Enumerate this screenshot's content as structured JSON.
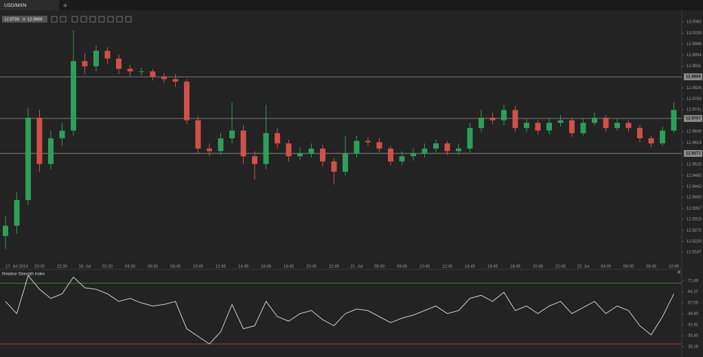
{
  "chart_data": [
    {
      "type": "candlestick",
      "title": "USD/MXN",
      "quote_labels": [
        "12.9739",
        "12.9808"
      ],
      "up_color": "#2e9e5b",
      "down_color": "#d0504a",
      "categories": [
        "17. Jul 2014",
        null,
        null,
        "20:30",
        null,
        "22:30",
        null,
        "18. Jul",
        null,
        "02:30",
        null,
        "04:30",
        null,
        "06:30",
        null,
        "08:45",
        null,
        "10:45",
        null,
        "12:45",
        null,
        "14:45",
        null,
        "16:45",
        null,
        "18:45",
        null,
        "20:45",
        null,
        "22:45",
        null,
        "21. Jul",
        null,
        "06:30",
        null,
        "08:45",
        null,
        "10:45",
        null,
        "12:45",
        null,
        "14:45",
        null,
        "16:45",
        null,
        "18:45",
        null,
        "20:45",
        null,
        "22:45",
        null,
        "22. Jul",
        null,
        "04:00",
        null,
        "06:00",
        null,
        "08:45",
        null,
        "10:45"
      ],
      "open": [
        12.925,
        12.929,
        12.939,
        12.971,
        12.953,
        12.963,
        12.966,
        12.993,
        12.991,
        12.997,
        12.994,
        12.99,
        12.989,
        12.989,
        12.987,
        12.986,
        12.985,
        12.97,
        12.959,
        12.958,
        12.963,
        12.966,
        12.956,
        12.953,
        12.965,
        12.961,
        12.956,
        12.957,
        12.959,
        12.954,
        12.95,
        12.957,
        12.962,
        12.9615,
        12.959,
        12.954,
        12.956,
        12.957,
        12.959,
        12.961,
        12.958,
        12.959,
        12.967,
        12.971,
        12.97,
        12.974,
        12.967,
        12.969,
        12.966,
        12.969,
        12.97,
        12.965,
        12.969,
        12.971,
        12.967,
        12.969,
        12.967,
        12.963,
        12.961,
        12.966
      ],
      "high": [
        12.933,
        12.942,
        12.975,
        12.974,
        12.966,
        12.969,
        13.005,
        12.996,
        12.999,
        12.9985,
        12.9955,
        12.9915,
        12.9905,
        12.99,
        12.9885,
        12.988,
        12.986,
        12.9715,
        12.961,
        12.965,
        12.977,
        12.968,
        12.958,
        12.976,
        12.967,
        12.9625,
        12.9595,
        12.961,
        12.9605,
        12.9555,
        12.964,
        12.964,
        12.9635,
        12.963,
        12.96,
        12.958,
        12.959,
        12.961,
        12.9625,
        12.962,
        12.961,
        12.969,
        12.974,
        12.973,
        12.976,
        12.9755,
        12.9705,
        12.97,
        12.971,
        12.972,
        12.971,
        12.9705,
        12.973,
        12.972,
        12.9705,
        12.97,
        12.968,
        12.964,
        12.9675,
        12.977
      ],
      "low": [
        12.92,
        12.926,
        12.937,
        12.95,
        12.951,
        12.96,
        12.964,
        12.988,
        12.989,
        12.992,
        12.988,
        12.987,
        12.9875,
        12.9855,
        12.9845,
        12.983,
        12.9685,
        12.957,
        12.956,
        12.9565,
        12.961,
        12.953,
        12.947,
        12.951,
        12.959,
        12.954,
        12.9545,
        12.9555,
        12.952,
        12.945,
        12.9485,
        12.9555,
        12.96,
        12.9575,
        12.9525,
        12.9525,
        12.9545,
        12.9555,
        12.9575,
        12.9565,
        12.9565,
        12.9575,
        12.9655,
        12.9685,
        12.968,
        12.9655,
        12.9655,
        12.9645,
        12.9645,
        12.9675,
        12.9635,
        12.964,
        12.968,
        12.9655,
        12.966,
        12.9655,
        12.9615,
        12.9595,
        12.96,
        12.965
      ],
      "close": [
        12.929,
        12.939,
        12.971,
        12.953,
        12.963,
        12.966,
        12.993,
        12.991,
        12.997,
        12.994,
        12.99,
        12.989,
        12.989,
        12.987,
        12.986,
        12.985,
        12.97,
        12.959,
        12.958,
        12.963,
        12.966,
        12.956,
        12.953,
        12.965,
        12.961,
        12.956,
        12.957,
        12.959,
        12.954,
        12.95,
        12.957,
        12.962,
        12.9615,
        12.959,
        12.954,
        12.956,
        12.957,
        12.959,
        12.961,
        12.958,
        12.959,
        12.967,
        12.971,
        12.97,
        12.974,
        12.967,
        12.969,
        12.966,
        12.969,
        12.97,
        12.965,
        12.969,
        12.971,
        12.967,
        12.969,
        12.967,
        12.963,
        12.961,
        12.966,
        12.974
      ],
      "ylim": [
        12.9142,
        13.0109
      ],
      "yticks": [
        12.9187,
        12.9229,
        12.9272,
        12.9315,
        12.9357,
        {
          "value": 12.94,
          "label": "12.9400"
        },
        12.9442,
        12.9485,
        12.9528,
        12.9613,
        12.9656,
        12.9741,
        12.9783,
        12.9826,
        12.9911,
        12.9954,
        12.9996,
        13.0039,
        13.0082
      ],
      "price_lines": [
        12.9869,
        12.9707,
        12.9571
      ]
    },
    {
      "type": "line",
      "title": "Relative Strength Index",
      "color": "#e6e6e6",
      "values": [
        58,
        50,
        75,
        66,
        60,
        63,
        74,
        67,
        66,
        63,
        58,
        60,
        57,
        55,
        56,
        58,
        40,
        35,
        30,
        38,
        56,
        40,
        42,
        58,
        48,
        45,
        50,
        52,
        46,
        42,
        50,
        53,
        52,
        48,
        44,
        47,
        49,
        52,
        55,
        50,
        52,
        60,
        62,
        58,
        64,
        52,
        55,
        50,
        55,
        58,
        50,
        54,
        58,
        50,
        55,
        52,
        42,
        36,
        48,
        63
      ],
      "ylim": [
        22.77,
        78.25
      ],
      "yticks": [
        28.18,
        {
          "value": 35.4,
          "label": "35.40"
        },
        42.62,
        49.83,
        57.05,
        64.27,
        71.49
      ],
      "levels": [
        {
          "value": 70,
          "color": "#3f7f3f"
        },
        {
          "value": 30,
          "color": "#a83a3a"
        }
      ]
    }
  ]
}
